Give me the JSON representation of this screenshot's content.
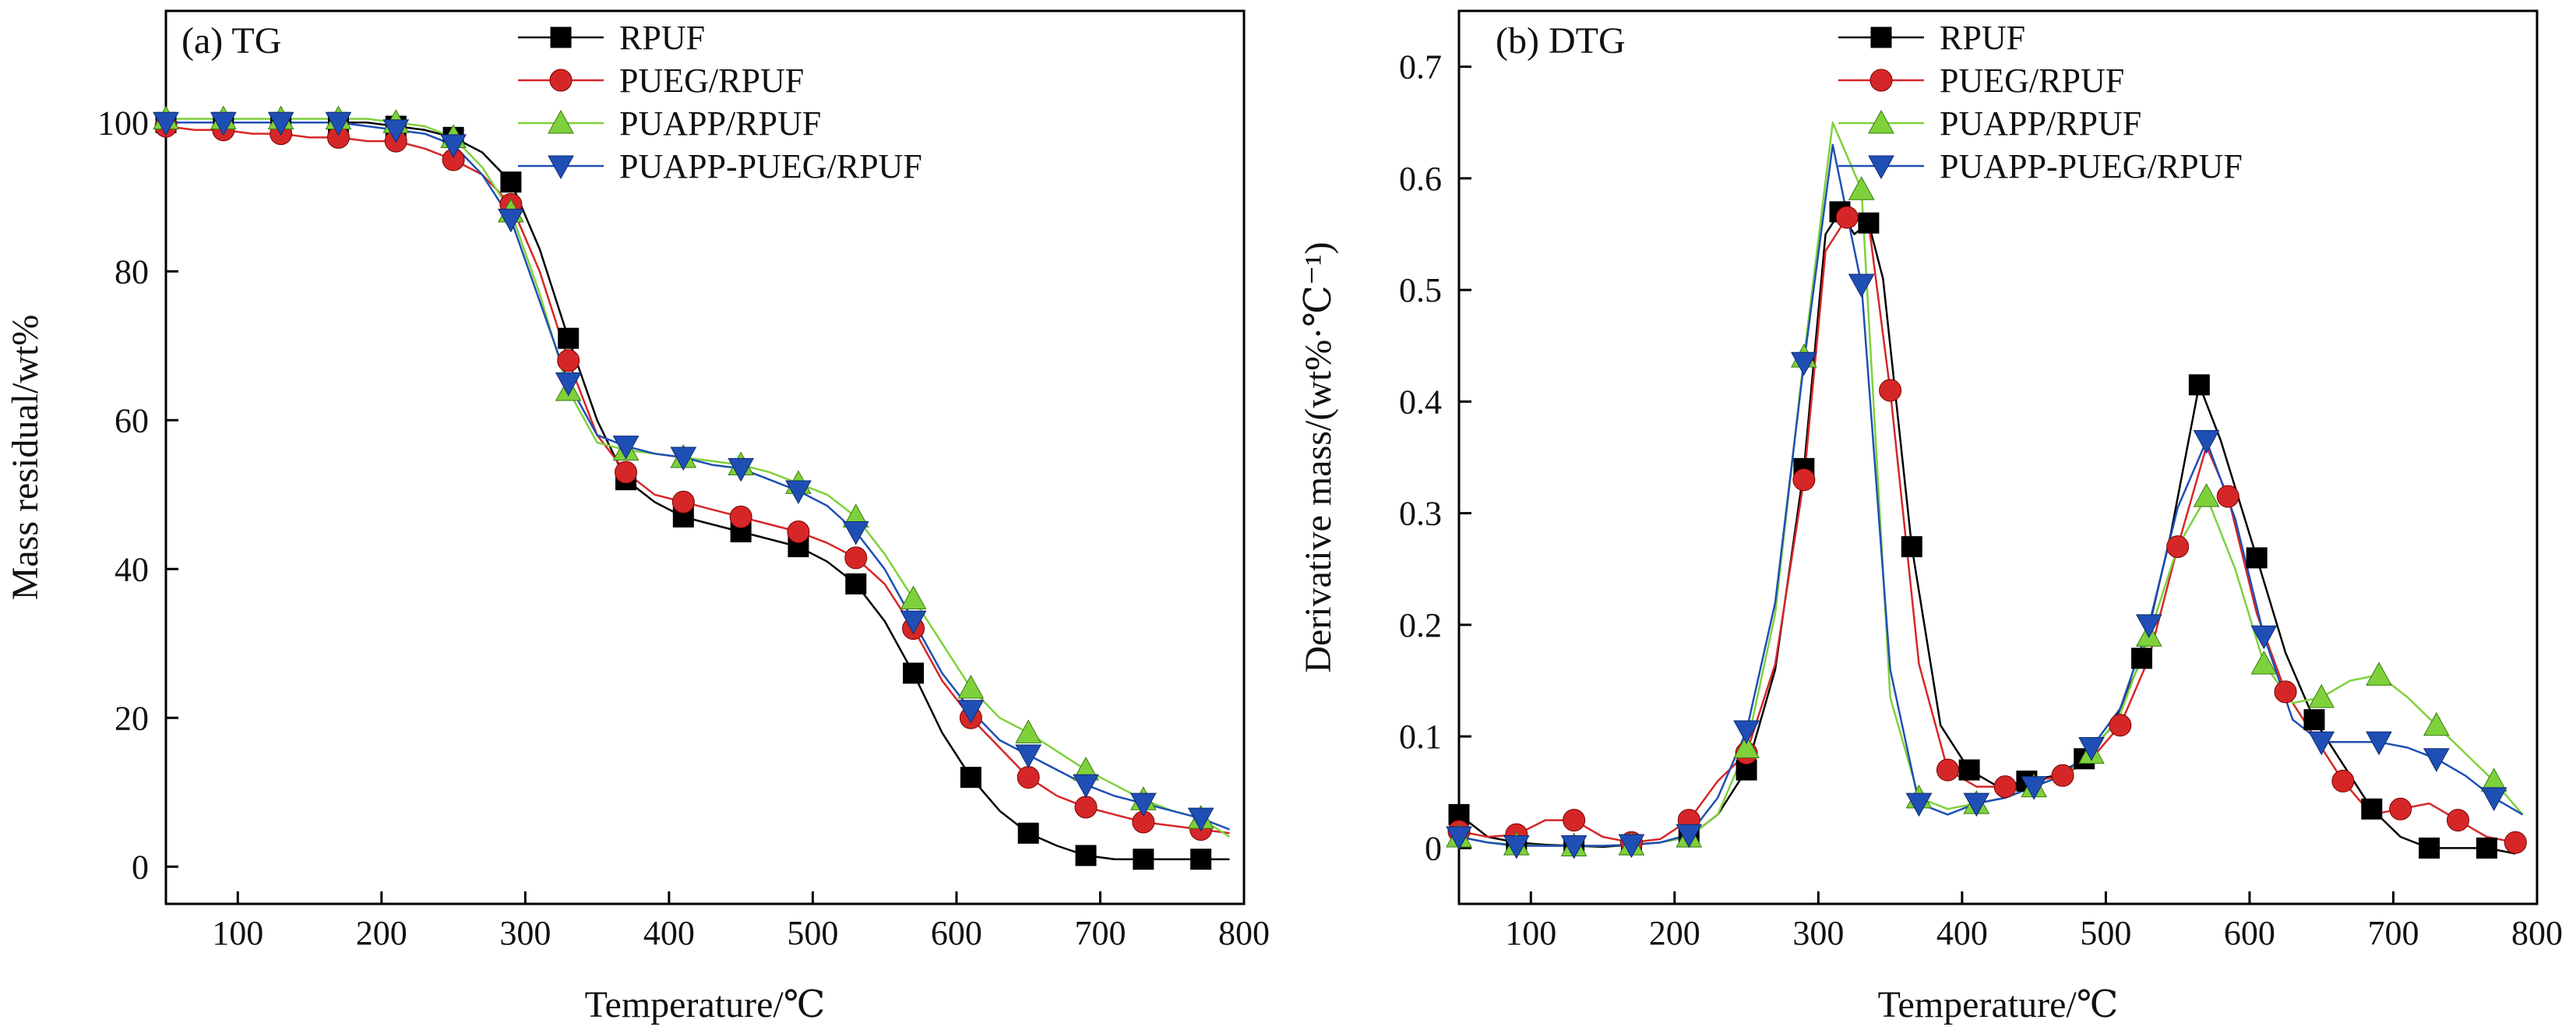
{
  "chart_data": [
    {
      "type": "line",
      "title": "(a) TG",
      "xlabel": "Temperature/℃",
      "ylabel": "Mass residual/wt%",
      "xlim": [
        50,
        800
      ],
      "ylim": [
        -5,
        115
      ],
      "xticks": [
        100,
        200,
        300,
        400,
        500,
        600,
        700,
        800
      ],
      "yticks": [
        0,
        20,
        40,
        60,
        80,
        100
      ],
      "grid": false,
      "legend_position": "top-center",
      "series": [
        {
          "name": "RPUF",
          "color": "#000000",
          "marker": "square",
          "x": [
            50,
            70,
            90,
            110,
            130,
            150,
            170,
            190,
            210,
            230,
            250,
            270,
            290,
            310,
            330,
            350,
            370,
            390,
            410,
            430,
            450,
            470,
            490,
            510,
            530,
            550,
            570,
            590,
            610,
            630,
            650,
            670,
            690,
            710,
            730,
            750,
            770,
            790
          ],
          "y": [
            100,
            100,
            100,
            100,
            100,
            100,
            100,
            100,
            99.5,
            99,
            98,
            96,
            92,
            83,
            71,
            60,
            52,
            49,
            47,
            46,
            45,
            44,
            43,
            41,
            38,
            33,
            26,
            18,
            12,
            7.5,
            4.5,
            2.8,
            1.5,
            1,
            1,
            1,
            1,
            1
          ]
        },
        {
          "name": "PUEG/RPUF",
          "color": "#d62728",
          "marker": "circle",
          "x": [
            50,
            70,
            90,
            110,
            130,
            150,
            170,
            190,
            210,
            230,
            250,
            270,
            290,
            310,
            330,
            350,
            370,
            390,
            410,
            430,
            450,
            470,
            490,
            510,
            530,
            550,
            570,
            590,
            610,
            630,
            650,
            670,
            690,
            710,
            730,
            750,
            770,
            790
          ],
          "y": [
            99.5,
            99,
            99,
            98.5,
            98.5,
            98,
            98,
            97.5,
            97.5,
            96.5,
            95,
            93,
            89,
            80,
            68,
            58,
            53,
            50,
            49,
            48,
            47,
            46,
            45,
            43.5,
            41.5,
            38,
            32,
            25,
            20,
            16,
            12,
            9.5,
            8,
            7,
            6,
            5.5,
            5,
            4.5
          ]
        },
        {
          "name": "PUAPP/RPUF",
          "color": "#7fd13b",
          "marker": "triangle-up",
          "x": [
            50,
            70,
            90,
            110,
            130,
            150,
            170,
            190,
            210,
            230,
            250,
            270,
            290,
            310,
            330,
            350,
            370,
            390,
            410,
            430,
            450,
            470,
            490,
            510,
            530,
            550,
            570,
            590,
            610,
            630,
            650,
            670,
            690,
            710,
            730,
            750,
            770,
            790
          ],
          "y": [
            100.5,
            100.5,
            100.5,
            100.5,
            100.5,
            100.5,
            100.5,
            100.5,
            100,
            99.5,
            98,
            94,
            88,
            77,
            64,
            57,
            56,
            55.5,
            55,
            54.5,
            54,
            53,
            51.5,
            50,
            47,
            42,
            36,
            30,
            24,
            20,
            18,
            15.5,
            13,
            11,
            9,
            7.5,
            6.5,
            4
          ]
        },
        {
          "name": "PUAPP-PUEG/RPUF",
          "color": "#1f4fb5",
          "marker": "triangle-down",
          "x": [
            50,
            70,
            90,
            110,
            130,
            150,
            170,
            190,
            210,
            230,
            250,
            270,
            290,
            310,
            330,
            350,
            370,
            390,
            410,
            430,
            450,
            470,
            490,
            510,
            530,
            550,
            570,
            590,
            610,
            630,
            650,
            670,
            690,
            710,
            730,
            750,
            770,
            790
          ],
          "y": [
            100,
            100,
            100,
            100,
            100,
            100,
            100,
            99.5,
            99,
            98.5,
            97,
            93,
            87,
            76,
            65,
            58,
            56.5,
            55.5,
            55,
            54,
            53.5,
            52,
            50.5,
            48.5,
            45,
            40,
            33,
            26,
            21,
            17,
            15,
            13,
            11,
            9.5,
            8.5,
            7.5,
            6.5,
            5
          ]
        }
      ]
    },
    {
      "type": "line",
      "title": "(b) DTG",
      "xlabel": "Temperature/℃",
      "ylabel": "Derivative mass/(wt%·℃⁻¹)",
      "xlim": [
        50,
        800
      ],
      "ylim": [
        -0.05,
        0.75
      ],
      "xticks": [
        100,
        200,
        300,
        400,
        500,
        600,
        700,
        800
      ],
      "yticks": [
        0,
        0.1,
        0.2,
        0.3,
        0.4,
        0.5,
        0.6,
        0.7
      ],
      "grid": false,
      "legend_position": "top-center",
      "series": [
        {
          "name": "RPUF",
          "color": "#000000",
          "marker": "square",
          "x": [
            50,
            70,
            90,
            110,
            130,
            150,
            170,
            190,
            210,
            230,
            250,
            270,
            290,
            305,
            315,
            325,
            335,
            345,
            365,
            385,
            405,
            425,
            445,
            465,
            485,
            505,
            525,
            545,
            565,
            580,
            605,
            625,
            645,
            665,
            685,
            705,
            725,
            745,
            765,
            785
          ],
          "y": [
            0.03,
            0.01,
            0.005,
            0.003,
            0.002,
            0.001,
            0.003,
            0.005,
            0.01,
            0.03,
            0.07,
            0.16,
            0.34,
            0.55,
            0.57,
            0.55,
            0.56,
            0.51,
            0.27,
            0.11,
            0.07,
            0.055,
            0.06,
            0.065,
            0.08,
            0.11,
            0.17,
            0.28,
            0.415,
            0.365,
            0.26,
            0.175,
            0.115,
            0.075,
            0.035,
            0.01,
            0.0,
            0.0,
            0.0,
            -0.005
          ]
        },
        {
          "name": "PUEG/RPUF",
          "color": "#d62728",
          "marker": "circle",
          "x": [
            50,
            70,
            90,
            110,
            130,
            150,
            170,
            190,
            210,
            230,
            250,
            270,
            290,
            305,
            320,
            335,
            350,
            370,
            390,
            410,
            430,
            450,
            470,
            490,
            510,
            530,
            550,
            570,
            585,
            605,
            625,
            645,
            665,
            685,
            705,
            725,
            745,
            765,
            785
          ],
          "y": [
            0.015,
            0.01,
            0.012,
            0.025,
            0.025,
            0.01,
            0.005,
            0.008,
            0.025,
            0.06,
            0.085,
            0.165,
            0.33,
            0.535,
            0.565,
            0.56,
            0.41,
            0.165,
            0.07,
            0.055,
            0.055,
            0.06,
            0.065,
            0.08,
            0.11,
            0.17,
            0.27,
            0.36,
            0.315,
            0.21,
            0.14,
            0.1,
            0.06,
            0.03,
            0.035,
            0.04,
            0.025,
            0.01,
            0.005
          ]
        },
        {
          "name": "PUAPP/RPUF",
          "color": "#7fd13b",
          "marker": "triangle-up",
          "x": [
            50,
            70,
            90,
            110,
            130,
            150,
            170,
            190,
            210,
            230,
            250,
            270,
            290,
            310,
            330,
            350,
            370,
            390,
            410,
            430,
            450,
            470,
            490,
            510,
            530,
            550,
            570,
            590,
            610,
            630,
            650,
            670,
            690,
            710,
            730,
            750,
            770,
            790
          ],
          "y": [
            0.01,
            0.005,
            0.003,
            0.002,
            0.002,
            0.002,
            0.003,
            0.005,
            0.01,
            0.03,
            0.09,
            0.21,
            0.44,
            0.65,
            0.59,
            0.135,
            0.045,
            0.035,
            0.04,
            0.045,
            0.055,
            0.065,
            0.085,
            0.12,
            0.19,
            0.27,
            0.315,
            0.25,
            0.165,
            0.13,
            0.135,
            0.15,
            0.155,
            0.135,
            0.11,
            0.085,
            0.06,
            0.03
          ]
        },
        {
          "name": "PUAPP-PUEG/RPUF",
          "color": "#1f4fb5",
          "marker": "triangle-down",
          "x": [
            50,
            70,
            90,
            110,
            130,
            150,
            170,
            190,
            210,
            230,
            250,
            270,
            290,
            310,
            330,
            350,
            370,
            390,
            410,
            430,
            450,
            470,
            490,
            510,
            530,
            550,
            570,
            590,
            610,
            630,
            650,
            670,
            690,
            710,
            730,
            750,
            770,
            790
          ],
          "y": [
            0.01,
            0.005,
            0.002,
            0.002,
            0.002,
            0.002,
            0.003,
            0.005,
            0.012,
            0.045,
            0.105,
            0.22,
            0.435,
            0.63,
            0.505,
            0.16,
            0.04,
            0.03,
            0.04,
            0.045,
            0.055,
            0.065,
            0.09,
            0.125,
            0.2,
            0.305,
            0.365,
            0.295,
            0.19,
            0.115,
            0.095,
            0.095,
            0.095,
            0.09,
            0.08,
            0.065,
            0.045,
            0.03
          ]
        }
      ]
    }
  ]
}
